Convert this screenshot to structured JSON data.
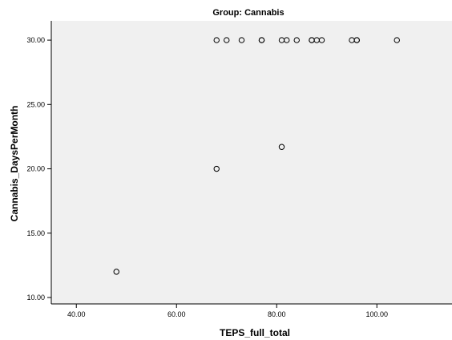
{
  "chart_data": {
    "type": "scatter",
    "title": "Group: Cannabis",
    "xlabel": "TEPS_full_total",
    "ylabel": "Cannabis_DaysPerMonth",
    "xlim": [
      35,
      115
    ],
    "ylim": [
      9.5,
      31.5
    ],
    "x_ticks": [
      {
        "value": 40,
        "label": "40.00"
      },
      {
        "value": 60,
        "label": "60.00"
      },
      {
        "value": 80,
        "label": "80.00"
      },
      {
        "value": 100,
        "label": "100.00"
      }
    ],
    "y_ticks": [
      {
        "value": 10,
        "label": "10.00"
      },
      {
        "value": 15,
        "label": "15.00"
      },
      {
        "value": 20,
        "label": "20.00"
      },
      {
        "value": 25,
        "label": "25.00"
      },
      {
        "value": 30,
        "label": "30.00"
      }
    ],
    "grid": false,
    "marker": "open-circle",
    "colors": {
      "plot_bg": "#f0f0f0",
      "marker": "#000000",
      "axis": "#000000"
    },
    "points": [
      {
        "x": 48,
        "y": 12
      },
      {
        "x": 68,
        "y": 20
      },
      {
        "x": 81,
        "y": 21.7
      },
      {
        "x": 68,
        "y": 30
      },
      {
        "x": 70,
        "y": 30
      },
      {
        "x": 73,
        "y": 30
      },
      {
        "x": 77,
        "y": 30
      },
      {
        "x": 77,
        "y": 30
      },
      {
        "x": 81,
        "y": 30
      },
      {
        "x": 82,
        "y": 30
      },
      {
        "x": 84,
        "y": 30
      },
      {
        "x": 87,
        "y": 30
      },
      {
        "x": 87,
        "y": 30
      },
      {
        "x": 88,
        "y": 30
      },
      {
        "x": 89,
        "y": 30
      },
      {
        "x": 95,
        "y": 30
      },
      {
        "x": 96,
        "y": 30
      },
      {
        "x": 96,
        "y": 30
      },
      {
        "x": 104,
        "y": 30
      }
    ]
  }
}
